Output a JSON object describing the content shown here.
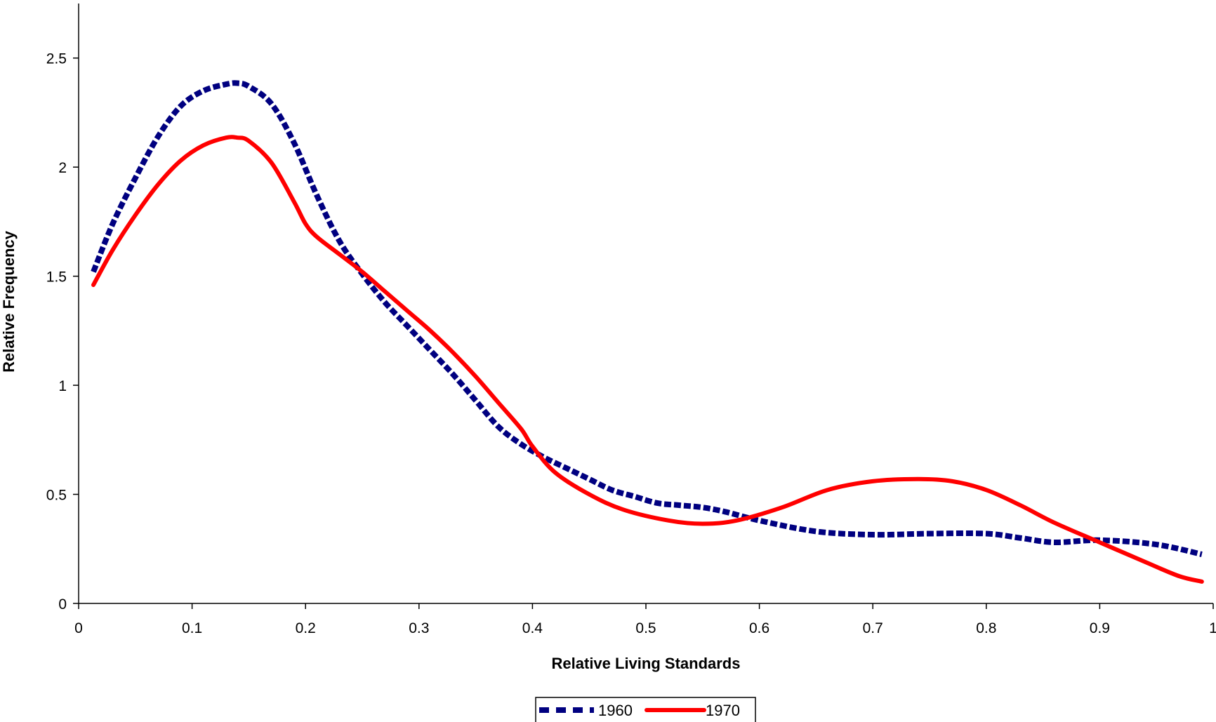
{
  "chart_data": {
    "type": "line",
    "title": "",
    "xlabel": "Relative Living Standards",
    "ylabel": "Relative Frequency",
    "xlim": [
      0,
      1
    ],
    "ylim": [
      0,
      2.75
    ],
    "x_ticks": [
      0,
      0.1,
      0.2,
      0.3,
      0.4,
      0.5,
      0.6,
      0.7,
      0.8,
      0.9,
      1
    ],
    "x_tick_labels": [
      "0",
      "0.1",
      "0.2",
      "0.3",
      "0.4",
      "0.5",
      "0.6",
      "0.7",
      "0.8",
      "0.9",
      "1"
    ],
    "y_ticks": [
      0,
      0.5,
      1,
      1.5,
      2,
      2.5
    ],
    "y_tick_labels": [
      "0",
      "0.5",
      "1",
      "1.5",
      "2",
      "2.5"
    ],
    "grid": false,
    "legend_position": "bottom",
    "series": [
      {
        "name": "1960",
        "color": "#000080",
        "style": "dashed",
        "x": [
          0.013,
          0.03,
          0.05,
          0.07,
          0.09,
          0.11,
          0.13,
          0.14,
          0.15,
          0.17,
          0.19,
          0.21,
          0.23,
          0.25,
          0.27,
          0.29,
          0.31,
          0.33,
          0.35,
          0.37,
          0.39,
          0.41,
          0.43,
          0.45,
          0.47,
          0.49,
          0.51,
          0.53,
          0.55,
          0.57,
          0.6,
          0.65,
          0.7,
          0.75,
          0.8,
          0.83,
          0.86,
          0.9,
          0.95,
          0.99
        ],
        "y": [
          1.52,
          1.74,
          1.95,
          2.14,
          2.28,
          2.35,
          2.38,
          2.385,
          2.37,
          2.29,
          2.11,
          1.87,
          1.66,
          1.51,
          1.38,
          1.27,
          1.16,
          1.05,
          0.93,
          0.81,
          0.73,
          0.67,
          0.62,
          0.57,
          0.52,
          0.49,
          0.46,
          0.45,
          0.44,
          0.42,
          0.38,
          0.33,
          0.315,
          0.32,
          0.32,
          0.3,
          0.28,
          0.29,
          0.27,
          0.225
        ]
      },
      {
        "name": "1970",
        "color": "#ff0000",
        "style": "solid",
        "x": [
          0.013,
          0.03,
          0.05,
          0.07,
          0.09,
          0.11,
          0.13,
          0.14,
          0.15,
          0.17,
          0.19,
          0.2,
          0.21,
          0.23,
          0.25,
          0.27,
          0.29,
          0.31,
          0.33,
          0.35,
          0.37,
          0.39,
          0.4,
          0.42,
          0.45,
          0.48,
          0.52,
          0.55,
          0.58,
          0.62,
          0.66,
          0.7,
          0.74,
          0.77,
          0.8,
          0.83,
          0.86,
          0.9,
          0.94,
          0.97,
          0.99
        ],
        "y": [
          1.46,
          1.62,
          1.78,
          1.92,
          2.03,
          2.1,
          2.135,
          2.135,
          2.12,
          2.02,
          1.84,
          1.74,
          1.68,
          1.6,
          1.52,
          1.43,
          1.34,
          1.25,
          1.15,
          1.04,
          0.92,
          0.8,
          0.72,
          0.6,
          0.5,
          0.43,
          0.38,
          0.365,
          0.38,
          0.44,
          0.52,
          0.56,
          0.57,
          0.56,
          0.52,
          0.45,
          0.37,
          0.28,
          0.19,
          0.125,
          0.1
        ]
      }
    ]
  }
}
